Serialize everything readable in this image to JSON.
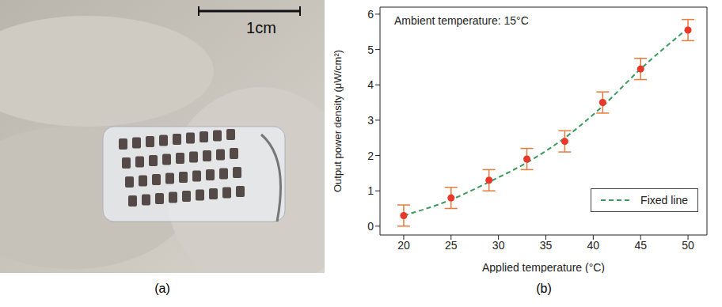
{
  "photo": {
    "scale_bar": "1cm",
    "caption": "(a)"
  },
  "chart_data": {
    "type": "scatter",
    "caption": "(b)",
    "annotation": "Ambient temperature: 15°C",
    "x_label": "Applied temperature (°C)",
    "y_label": "Output power density (μW/cm²)",
    "x": [
      20,
      25,
      29,
      33,
      37,
      41,
      45,
      50
    ],
    "series": [
      {
        "type": "scatter",
        "color": "#e8372b",
        "marker": "circle",
        "values": [
          0.3,
          0.8,
          1.3,
          1.9,
          2.4,
          3.5,
          4.45,
          5.55
        ],
        "error": [
          0.3,
          0.3,
          0.3,
          0.3,
          0.3,
          0.3,
          0.3,
          0.3
        ]
      },
      {
        "name": "Fixed line",
        "type": "line",
        "line_style": "dashed",
        "color": "#3a9a5b",
        "values": [
          0.3,
          0.75,
          1.25,
          1.8,
          2.5,
          3.4,
          4.45,
          5.6
        ]
      }
    ],
    "xlim": [
      17.5,
      52
    ],
    "xticks": [
      20,
      25,
      30,
      35,
      40,
      45,
      50
    ],
    "ylim": [
      -0.25,
      6.2
    ],
    "yticks": [
      0,
      1,
      2,
      3,
      4,
      5,
      6
    ],
    "legend": "lower right"
  }
}
